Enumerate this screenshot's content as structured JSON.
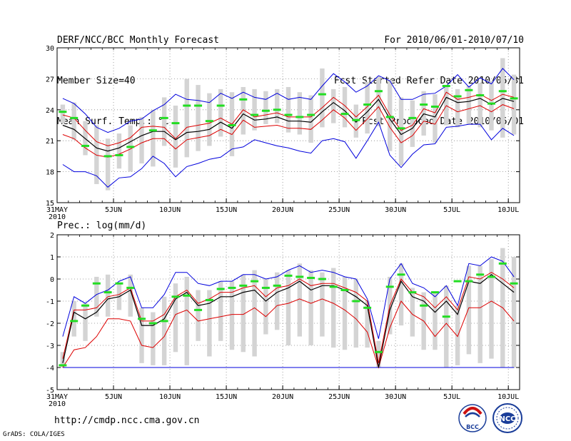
{
  "header": {
    "title": "DERF/NCC/BCC Monthly Forecast",
    "member_size": "Member Size=40",
    "variable": "Mean Surf. Temp.: °C",
    "period": "For 2010/06/01-2010/07/10",
    "fcst_started": "Fcst Started Refer Date 2010/05/31",
    "fcst_produced": "Fcst Produced Date 2010/06/01"
  },
  "footer": {
    "url": "http://cmdp.ncc.cma.gov.cn",
    "grads": "GrADS: COLA/IGES",
    "logo_bcc": "BCC",
    "logo_ncc": "NCC"
  },
  "colors": {
    "max_min": "#0000dd",
    "upper_lower": "#dd0000",
    "mean": "#000000",
    "obs": "#22dd22",
    "box": "#d4d4d4",
    "grid": "#888888"
  },
  "chart_data": [
    {
      "type": "ensemble-plume",
      "name": "temperature",
      "title": "Mean Surf. Temp.: °C",
      "x_tick_labels": [
        "31MAY",
        "5JUN",
        "10JUN",
        "15JUN",
        "20JUN",
        "25JUN",
        "30JUN",
        "5JUL",
        "10JUL"
      ],
      "x_tick_days": [
        0,
        5,
        10,
        15,
        20,
        25,
        30,
        35,
        40
      ],
      "x_sublabel": "2010",
      "ylim": [
        15,
        30
      ],
      "y_ticks": [
        15,
        18,
        21,
        24,
        27,
        30
      ],
      "days": 41,
      "series": {
        "max": [
          25.1,
          24.6,
          23.6,
          22.3,
          21.8,
          22.2,
          22.9,
          23.1,
          23.9,
          24.5,
          25.5,
          25.0,
          24.9,
          24.7,
          25.6,
          25.1,
          25.7,
          25.2,
          25.0,
          25.6,
          25.0,
          25.2,
          25.0,
          26.3,
          27.5,
          26.7,
          25.7,
          26.3,
          27.3,
          26.8,
          25.0,
          25.0,
          25.5,
          25.6,
          26.3,
          27.4,
          26.2,
          27.1,
          26.5,
          28.0,
          26.9
        ],
        "upper": [
          23.5,
          23.2,
          22.0,
          20.9,
          20.5,
          20.8,
          21.3,
          22.3,
          22.4,
          22.3,
          21.2,
          22.3,
          22.5,
          22.7,
          23.2,
          22.6,
          24.0,
          23.3,
          23.5,
          23.7,
          23.3,
          23.3,
          23.3,
          24.2,
          25.2,
          24.4,
          23.3,
          24.3,
          25.4,
          23.5,
          22.0,
          22.5,
          24.1,
          23.7,
          25.7,
          25.0,
          25.2,
          25.5,
          24.9,
          25.5,
          25.2
        ],
        "mean": [
          22.5,
          22.1,
          21.2,
          20.3,
          20.0,
          20.3,
          20.9,
          21.5,
          21.9,
          21.9,
          21.1,
          21.8,
          21.9,
          22.1,
          22.8,
          22.2,
          23.6,
          23.0,
          23.1,
          23.3,
          22.9,
          22.9,
          22.8,
          23.8,
          24.7,
          23.9,
          22.8,
          23.8,
          25.0,
          23.1,
          21.6,
          22.2,
          23.6,
          23.3,
          25.2,
          24.7,
          24.8,
          25.1,
          24.5,
          25.1,
          24.8
        ],
        "lower": [
          21.6,
          21.2,
          20.3,
          19.6,
          19.4,
          19.7,
          20.2,
          20.8,
          21.2,
          21.2,
          20.2,
          21.1,
          21.3,
          21.5,
          22.1,
          21.6,
          23.0,
          22.3,
          22.4,
          22.5,
          22.2,
          22.2,
          22.1,
          23.0,
          24.0,
          23.2,
          22.0,
          23.1,
          24.3,
          22.3,
          20.8,
          21.5,
          22.9,
          22.6,
          24.4,
          23.8,
          24.1,
          24.4,
          23.8,
          24.5,
          24.1
        ],
        "min": [
          18.7,
          18.0,
          18.0,
          17.6,
          16.5,
          17.4,
          17.5,
          18.3,
          19.5,
          18.8,
          17.5,
          18.5,
          18.8,
          19.2,
          19.4,
          20.2,
          20.4,
          21.1,
          20.8,
          20.5,
          20.3,
          20.0,
          19.8,
          21.0,
          21.2,
          20.9,
          19.3,
          21.0,
          22.8,
          19.6,
          18.4,
          19.7,
          20.6,
          20.7,
          22.3,
          22.4,
          22.6,
          22.6,
          21.1,
          22.2,
          21.5
        ],
        "obs": [
          23.8,
          23.2,
          20.5,
          null,
          19.5,
          19.6,
          20.4,
          null,
          22.0,
          23.2,
          22.7,
          24.4,
          24.4,
          22.9,
          24.4,
          22.5,
          25.0,
          23.5,
          23.9,
          24.0,
          23.5,
          23.3,
          23.5,
          25.5,
          null,
          23.6,
          23.0,
          24.5,
          25.8,
          23.3,
          22.2,
          23.2,
          24.5,
          24.3,
          26.3,
          25.3,
          25.9,
          25.4,
          24.6,
          25.8,
          25.1
        ],
        "box_high": [
          24.5,
          24.7,
          22.9,
          22.5,
          21.2,
          21.7,
          22.5,
          23.3,
          24.0,
          25.2,
          24.4,
          27.0,
          26.4,
          25.6,
          26.0,
          25.7,
          26.2,
          26.0,
          25.8,
          26.0,
          26.2,
          25.7,
          25.4,
          28.0,
          26.0,
          26.2,
          24.5,
          26.7,
          27.2,
          26.9,
          25.2,
          24.9,
          25.8,
          25.5,
          26.2,
          26.0,
          26.3,
          26.6,
          26.8,
          29.0,
          27.4
        ],
        "box_low": [
          22.7,
          21.1,
          19.6,
          16.8,
          16.2,
          18.3,
          18.0,
          18.8,
          18.5,
          20.5,
          18.4,
          19.4,
          20.0,
          20.5,
          21.4,
          19.5,
          21.6,
          22.0,
          22.6,
          22.7,
          21.8,
          21.6,
          20.8,
          22.3,
          22.7,
          22.3,
          21.3,
          21.7,
          22.4,
          20.0,
          18.6,
          20.4,
          21.5,
          20.8,
          22.5,
          22.3,
          22.6,
          22.3,
          22.0,
          21.3,
          21.6
        ]
      }
    },
    {
      "type": "ensemble-plume",
      "name": "precipitation",
      "title": "Prec.: log(mm/d)",
      "x_tick_labels": [
        "31MAY",
        "5JUN",
        "10JUN",
        "15JUN",
        "20JUN",
        "25JUN",
        "30JUN",
        "5JUL",
        "10JUL"
      ],
      "x_tick_days": [
        0,
        5,
        10,
        15,
        20,
        25,
        30,
        35,
        40
      ],
      "x_sublabel": "2010",
      "ylim": [
        -5,
        2
      ],
      "y_ticks": [
        -5,
        -4,
        -3,
        -2,
        -1,
        0,
        1,
        2
      ],
      "days": 41,
      "series": {
        "max": [
          -2.6,
          -0.8,
          -1.1,
          -0.7,
          -0.5,
          -0.1,
          0.1,
          -1.3,
          -1.3,
          -0.7,
          0.3,
          0.3,
          -0.2,
          -0.3,
          -0.1,
          -0.1,
          0.2,
          0.2,
          0.0,
          0.1,
          0.4,
          0.6,
          0.3,
          0.4,
          0.3,
          0.1,
          0.0,
          -0.9,
          -2.7,
          0.0,
          0.7,
          -0.2,
          -0.4,
          -0.8,
          -0.3,
          -1.2,
          0.7,
          0.6,
          1.0,
          0.8,
          0.1
        ],
        "upper": [
          -3.6,
          -1.4,
          -1.4,
          -1.3,
          -0.8,
          -0.7,
          -0.4,
          -1.9,
          -1.9,
          -1.6,
          -0.8,
          -0.5,
          -1.1,
          -0.9,
          -0.6,
          -0.6,
          -0.4,
          -0.3,
          -0.8,
          -0.4,
          -0.3,
          0.0,
          -0.3,
          -0.2,
          -0.2,
          -0.4,
          -0.6,
          -1.0,
          -3.8,
          -1.2,
          0.0,
          -0.6,
          -0.8,
          -1.3,
          -0.8,
          -1.4,
          0.1,
          0.0,
          0.3,
          0.0,
          -0.4
        ],
        "mean": [
          -3.8,
          -1.5,
          -1.8,
          -1.5,
          -0.9,
          -0.8,
          -0.5,
          -2.1,
          -2.1,
          -1.8,
          -0.9,
          -0.6,
          -1.2,
          -1.1,
          -0.8,
          -0.8,
          -0.6,
          -0.5,
          -1.0,
          -0.6,
          -0.4,
          -0.1,
          -0.5,
          -0.3,
          -0.3,
          -0.5,
          -0.8,
          -1.2,
          -4.0,
          -1.4,
          -0.1,
          -0.8,
          -1.0,
          -1.5,
          -1.0,
          -1.6,
          -0.1,
          -0.2,
          0.2,
          -0.2,
          -0.6
        ],
        "lower": [
          -4.0,
          -3.2,
          -3.1,
          -2.6,
          -1.8,
          -1.8,
          -1.9,
          -3.0,
          -3.1,
          -2.6,
          -1.6,
          -1.4,
          -1.9,
          -1.8,
          -1.7,
          -1.6,
          -1.6,
          -1.3,
          -1.7,
          -1.2,
          -1.1,
          -0.9,
          -1.1,
          -0.9,
          -1.1,
          -1.4,
          -1.8,
          -2.4,
          -4.0,
          -2.2,
          -1.0,
          -1.6,
          -1.9,
          -2.6,
          -2.0,
          -2.6,
          -1.3,
          -1.3,
          -1.0,
          -1.3,
          -1.9
        ],
        "min": [
          -4.0,
          -4.0,
          -4.0,
          -4.0,
          -4.0,
          -4.0,
          -4.0,
          -4.0,
          -4.0,
          -4.0,
          -4.0,
          -4.0,
          -4.0,
          -4.0,
          -4.0,
          -4.0,
          -4.0,
          -4.0,
          -4.0,
          -4.0,
          -4.0,
          -4.0,
          -4.0,
          -4.0,
          -4.0,
          -4.0,
          -4.0,
          -4.0,
          -4.0,
          -4.0,
          -4.0,
          -4.0,
          -4.0,
          -4.0,
          -4.0,
          -4.0,
          -4.0,
          -4.0,
          -4.0,
          -4.0,
          -4.0
        ],
        "obs": [
          -3.9,
          -1.9,
          -1.2,
          -0.2,
          -0.6,
          -0.2,
          -0.4,
          -1.8,
          -2.0,
          -1.9,
          -0.8,
          -0.75,
          -1.4,
          -0.95,
          -0.45,
          -0.4,
          -0.3,
          -0.1,
          -0.4,
          -0.3,
          0.15,
          0.1,
          0.05,
          0.0,
          -0.35,
          -0.5,
          -1.0,
          -1.3,
          -3.3,
          -0.35,
          0.2,
          -0.6,
          -1.2,
          -0.6,
          -1.7,
          -0.1,
          -0.1,
          0.2,
          0.1,
          0.7,
          -0.2
        ],
        "box_high": [
          -3.3,
          -1.0,
          -1.1,
          0.1,
          0.2,
          -0.2,
          0.2,
          -1.3,
          -1.5,
          -0.8,
          -0.2,
          0.1,
          -0.5,
          -0.5,
          -0.1,
          -0.1,
          0.2,
          0.4,
          0.0,
          0.3,
          0.4,
          0.7,
          0.4,
          0.3,
          0.5,
          0.1,
          0.0,
          -1.0,
          -2.8,
          0.1,
          0.7,
          -0.4,
          -0.6,
          -0.6,
          -0.3,
          -1.2,
          0.6,
          0.6,
          0.9,
          1.4,
          1.0
        ],
        "box_low": [
          -4.0,
          -2.6,
          -2.8,
          -1.7,
          -1.7,
          -1.4,
          -1.7,
          -3.8,
          -3.9,
          -3.9,
          -3.3,
          -3.9,
          -2.8,
          -3.5,
          -2.8,
          -3.2,
          -3.3,
          -3.5,
          -2.5,
          -2.3,
          -3.0,
          -2.6,
          -3.0,
          -2.6,
          -3.1,
          -3.2,
          -3.1,
          -3.1,
          -4.0,
          -2.5,
          -2.1,
          -2.6,
          -3.2,
          -3.2,
          -4.0,
          -3.9,
          -3.4,
          -3.8,
          -3.6,
          -4.0,
          -4.0
        ]
      }
    }
  ]
}
